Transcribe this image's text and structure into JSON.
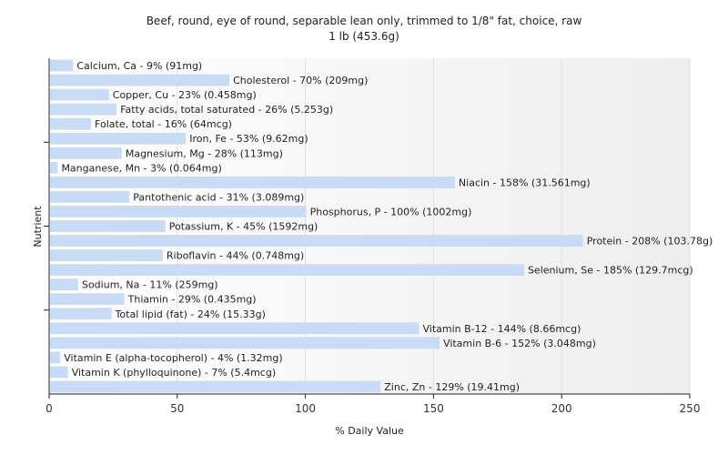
{
  "chart_data": {
    "type": "bar",
    "orientation": "horizontal",
    "title": "Beef, round, eye of round, separable lean only, trimmed to 1/8\" fat, choice, raw",
    "subtitle": "1 lb (453.6g)",
    "xlabel": "% Daily Value",
    "ylabel": "Nutrient",
    "xlim": [
      0,
      250
    ],
    "xticks": [
      0,
      50,
      100,
      150,
      200,
      250
    ],
    "grid": true,
    "bar_color": "#c6dcf7",
    "categories": [
      "Calcium, Ca",
      "Cholesterol",
      "Copper, Cu",
      "Fatty acids, total saturated",
      "Folate, total",
      "Iron, Fe",
      "Magnesium, Mg",
      "Manganese, Mn",
      "Niacin",
      "Pantothenic acid",
      "Phosphorus, P",
      "Potassium, K",
      "Protein",
      "Riboflavin",
      "Selenium, Se",
      "Sodium, Na",
      "Thiamin",
      "Total lipid (fat)",
      "Vitamin B-12",
      "Vitamin B-6",
      "Vitamin E (alpha-tocopherol)",
      "Vitamin K (phylloquinone)",
      "Zinc, Zn"
    ],
    "values": [
      9,
      70,
      23,
      26,
      16,
      53,
      28,
      3,
      158,
      31,
      100,
      45,
      208,
      44,
      185,
      11,
      29,
      24,
      144,
      152,
      4,
      7,
      129
    ],
    "labels": [
      "Calcium, Ca - 9% (91mg)",
      "Cholesterol - 70% (209mg)",
      "Copper, Cu - 23% (0.458mg)",
      "Fatty acids, total saturated - 26% (5.253g)",
      "Folate, total - 16% (64mcg)",
      "Iron, Fe - 53% (9.62mg)",
      "Magnesium, Mg - 28% (113mg)",
      "Manganese, Mn - 3% (0.064mg)",
      "Niacin - 158% (31.561mg)",
      "Pantothenic acid - 31% (3.089mg)",
      "Phosphorus, P - 100% (1002mg)",
      "Potassium, K - 45% (1592mg)",
      "Protein - 208% (103.78g)",
      "Riboflavin - 44% (0.748mg)",
      "Selenium, Se - 185% (129.7mcg)",
      "Sodium, Na - 11% (259mg)",
      "Thiamin - 29% (0.435mg)",
      "Total lipid (fat) - 24% (15.33g)",
      "Vitamin B-12 - 144% (8.66mcg)",
      "Vitamin B-6 - 152% (3.048mg)",
      "Vitamin E (alpha-tocopherol) - 4% (1.32mg)",
      "Vitamin K (phylloquinone) - 7% (5.4mcg)",
      "Zinc, Zn - 129% (19.41mg)"
    ]
  }
}
